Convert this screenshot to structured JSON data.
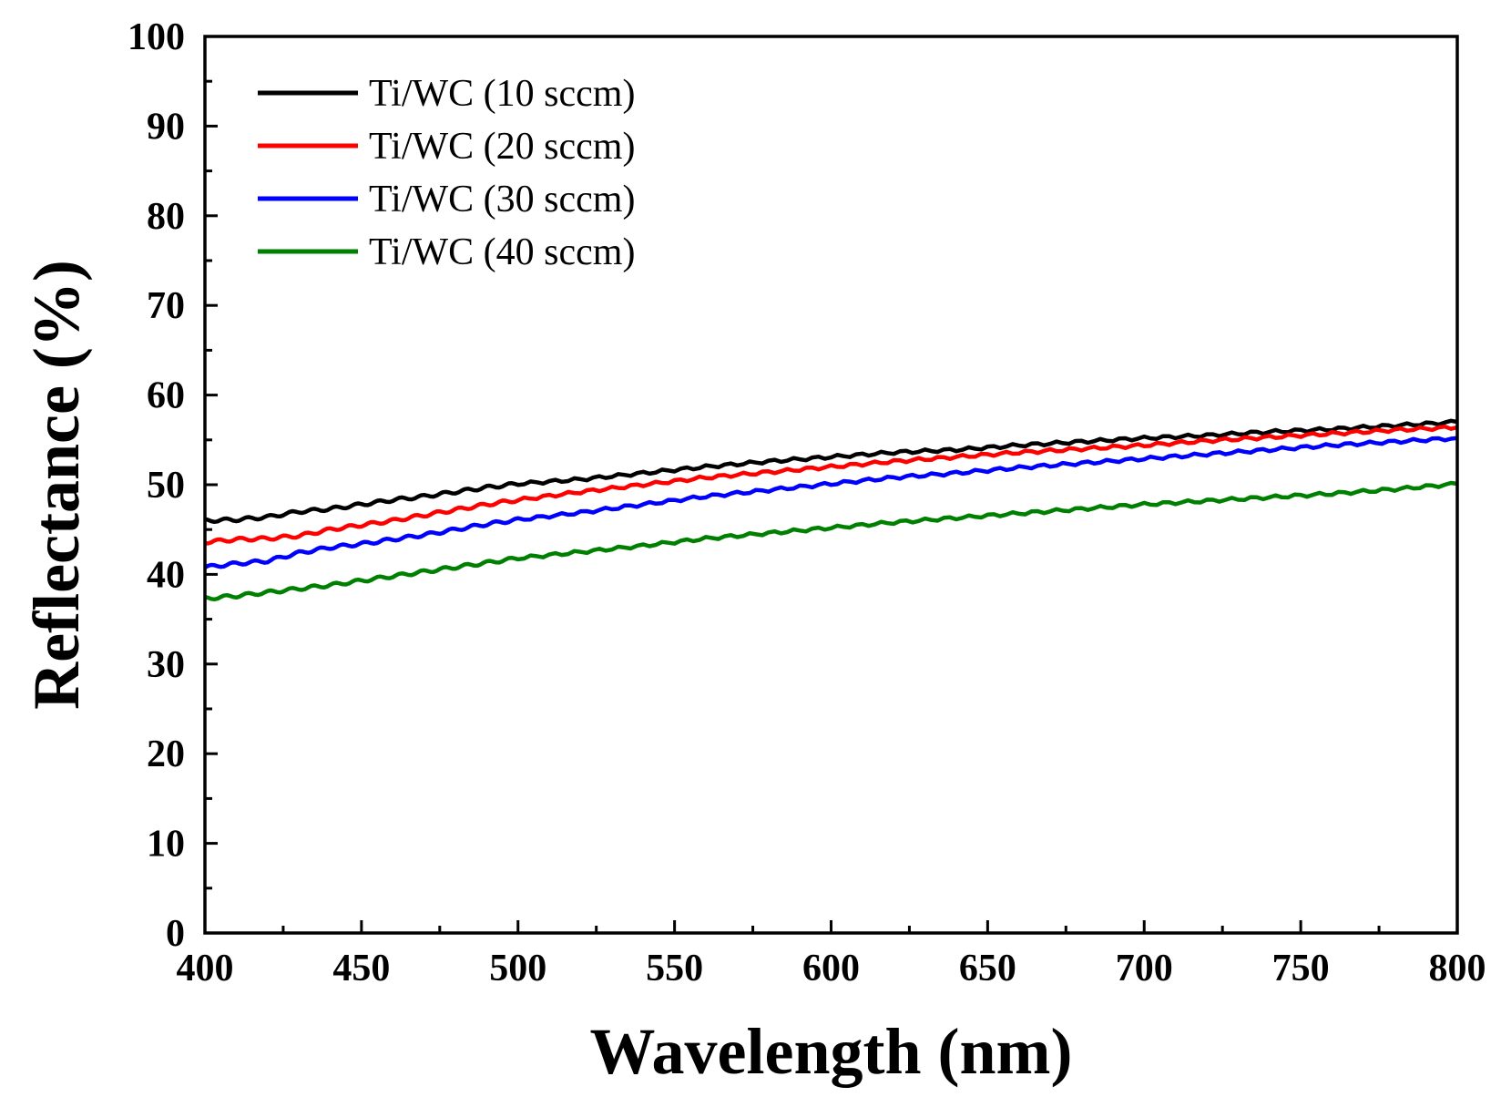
{
  "chart_data": {
    "type": "line",
    "title": "",
    "xlabel": "Wavelength (nm)",
    "ylabel": "Reflectance (%)",
    "xlim": [
      400,
      800
    ],
    "ylim": [
      0,
      100
    ],
    "xticks": [
      400,
      450,
      500,
      550,
      600,
      650,
      700,
      750,
      800
    ],
    "yticks": [
      0,
      10,
      20,
      30,
      40,
      50,
      60,
      70,
      80,
      90,
      100
    ],
    "grid": false,
    "legend_position": "top-left",
    "x": [
      400,
      410,
      420,
      430,
      440,
      450,
      460,
      470,
      480,
      490,
      500,
      520,
      540,
      560,
      580,
      600,
      620,
      640,
      660,
      680,
      700,
      720,
      740,
      760,
      780,
      800
    ],
    "series": [
      {
        "name": "Ti/WC (10 sccm)",
        "color": "#000000",
        "values": [
          46.0,
          46.1,
          46.4,
          47.0,
          47.3,
          47.8,
          48.3,
          48.7,
          49.2,
          49.7,
          50.1,
          50.6,
          51.3,
          52.0,
          52.6,
          53.1,
          53.6,
          53.9,
          54.4,
          54.8,
          55.2,
          55.5,
          55.9,
          56.2,
          56.6,
          57.0
        ]
      },
      {
        "name": "Ti/WC (20 sccm)",
        "color": "#ff0000",
        "values": [
          43.6,
          43.9,
          44.0,
          44.3,
          45.0,
          45.5,
          46.0,
          46.6,
          47.2,
          47.8,
          48.3,
          49.2,
          50.0,
          50.8,
          51.4,
          52.0,
          52.6,
          53.1,
          53.6,
          54.0,
          54.4,
          54.9,
          55.3,
          55.7,
          56.1,
          56.4
        ]
      },
      {
        "name": "Ti/WC (30 sccm)",
        "color": "#0000ff",
        "values": [
          40.8,
          41.2,
          41.5,
          42.4,
          43.0,
          43.4,
          43.9,
          44.4,
          45.0,
          45.6,
          46.1,
          46.9,
          47.8,
          48.7,
          49.4,
          50.1,
          50.8,
          51.3,
          51.9,
          52.4,
          52.9,
          53.4,
          53.9,
          54.4,
          54.8,
          55.2
        ]
      },
      {
        "name": "Ti/WC (40 sccm)",
        "color": "#008000",
        "values": [
          37.3,
          37.6,
          38.0,
          38.4,
          38.8,
          39.3,
          39.8,
          40.3,
          40.8,
          41.3,
          41.8,
          42.5,
          43.2,
          44.0,
          44.6,
          45.2,
          45.8,
          46.3,
          46.8,
          47.3,
          47.8,
          48.2,
          48.6,
          49.0,
          49.5,
          50.1
        ]
      }
    ]
  }
}
